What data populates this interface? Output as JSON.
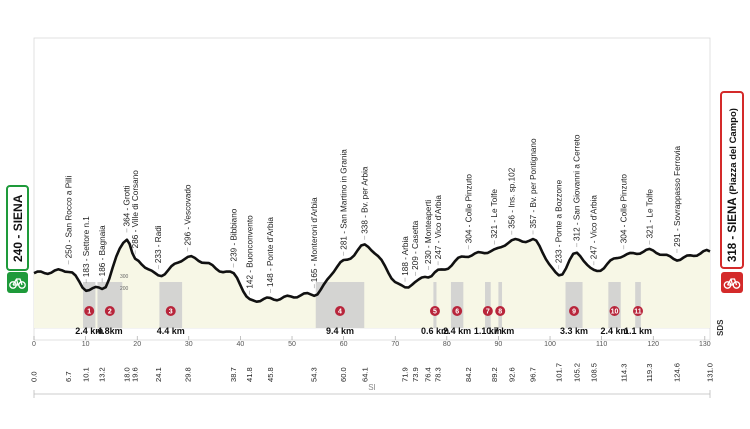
{
  "start": {
    "altitude": "240",
    "name": "SIENA",
    "color": "#1e9a3a"
  },
  "finish": {
    "altitude": "318",
    "name": "SIENA",
    "place": "(Piazza del Campo)",
    "color": "#d42a2a"
  },
  "brand_mark": "SDS",
  "bottom_label": "SI",
  "altitude_ticks": [
    "200",
    "300"
  ],
  "axis": {
    "km_min": 0,
    "km_max": 131,
    "ticks": [
      "0",
      "10",
      "20",
      "30",
      "40",
      "50",
      "60",
      "70",
      "80",
      "90",
      "100",
      "110",
      "120",
      "130"
    ]
  },
  "waypoints": [
    {
      "km": "0.0",
      "label": ""
    },
    {
      "km": "6.7",
      "label": "250 - San Rocco a Pilli"
    },
    {
      "km": "10.1",
      "label": "183 - Settore n.1"
    },
    {
      "km": "13.2",
      "label": "186 - Bagnaia"
    },
    {
      "km": "18.0",
      "label": "364 - Grotti"
    },
    {
      "km": "19.6",
      "label": "286 - Ville di Corsano"
    },
    {
      "km": "24.1",
      "label": "233 - Radi"
    },
    {
      "km": "29.8",
      "label": "296 - Vescovado"
    },
    {
      "km": "38.7",
      "label": "239 - Bibbiano"
    },
    {
      "km": "41.8",
      "label": "142 - Buonconvento"
    },
    {
      "km": "45.8",
      "label": "148 - Ponte d'Arbia"
    },
    {
      "km": "54.3",
      "label": "165 - Monteroni d'Arbia"
    },
    {
      "km": "60.0",
      "label": "281 - San Martino in Grania"
    },
    {
      "km": "64.1",
      "label": "338 - Bv. per Arbia"
    },
    {
      "km": "71.9",
      "label": "188 - Arbia"
    },
    {
      "km": "73.9",
      "label": "209 - Casetta"
    },
    {
      "km": "76.4",
      "label": "230 - Monteaperti"
    },
    {
      "km": "78.3",
      "label": "247 - Vico d'Arbia"
    },
    {
      "km": "84.2",
      "label": "304 - Colle Pinzuto"
    },
    {
      "km": "89.2",
      "label": "321 - Le Tolfe"
    },
    {
      "km": "92.6",
      "label": "356 - Ins. sp.102"
    },
    {
      "km": "96.7",
      "label": "357 - Bv. per Pontignano"
    },
    {
      "km": "101.7",
      "label": "233 - Ponte a Bozzone"
    },
    {
      "km": "105.2",
      "label": "312 - San Giovanni a Cerreto"
    },
    {
      "km": "108.5",
      "label": "247 - Vico d'Arbia"
    },
    {
      "km": "114.3",
      "label": "304 - Colle Pinzuto"
    },
    {
      "km": "119.3",
      "label": "321 - Le Tolfe"
    },
    {
      "km": "124.6",
      "label": "291 - Sovrappasso Ferrovia"
    },
    {
      "km": "131.0",
      "label": ""
    }
  ],
  "sectors": [
    {
      "num": "1",
      "length": "2.4 km",
      "start_km": 9.5,
      "end_km": 11.9
    },
    {
      "num": "2",
      "length": "4.8km",
      "start_km": 12.3,
      "end_km": 17.1
    },
    {
      "num": "3",
      "length": "4.4 km",
      "start_km": 24.3,
      "end_km": 28.7
    },
    {
      "num": "4",
      "length": "9.4 km",
      "start_km": 54.6,
      "end_km": 64.0
    },
    {
      "num": "5",
      "length": "0.6 km",
      "start_km": 77.4,
      "end_km": 78.0
    },
    {
      "num": "6",
      "length": "2.4 km",
      "start_km": 80.8,
      "end_km": 83.2
    },
    {
      "num": "7",
      "length": "1.1 km",
      "start_km": 87.4,
      "end_km": 88.5
    },
    {
      "num": "8",
      "length": "0.7 km",
      "start_km": 90.0,
      "end_km": 90.7
    },
    {
      "num": "9",
      "length": "3.3 km",
      "start_km": 103.0,
      "end_km": 106.3
    },
    {
      "num": "10",
      "length": "2.4 km",
      "start_km": 111.3,
      "end_km": 113.7
    },
    {
      "num": "11",
      "length": "1.1 km",
      "start_km": 116.5,
      "end_km": 117.6
    }
  ]
}
